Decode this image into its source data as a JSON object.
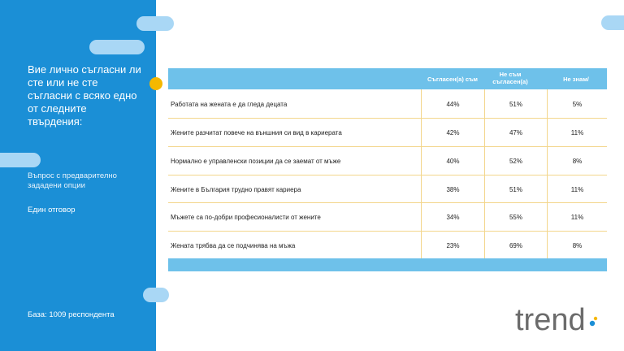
{
  "sidebar": {
    "question": "Вие лично съгласни ли сте или не сте съгласни с всяко едно от следните твърдения:",
    "question_type": "Въпрос с предварително зададени опции",
    "answer_type": "Един отговор",
    "base": "База: 1009 респондента"
  },
  "table": {
    "headers": [
      "",
      "Съгласен(а) съм",
      "Не съм съгласен(а)",
      "Не знам/"
    ],
    "rows": [
      {
        "label": "Работата на жената е да гледа децата",
        "agree": "44%",
        "disagree": "51%",
        "dont_know": "5%"
      },
      {
        "label": "Жените разчитат повече на външния си вид в кариерата",
        "agree": "42%",
        "disagree": "47%",
        "dont_know": "11%"
      },
      {
        "label": "Нормално е управленски позиции да се заемат от мъже",
        "agree": "40%",
        "disagree": "52%",
        "dont_know": "8%"
      },
      {
        "label": "Жените в България трудно правят кариера",
        "agree": "38%",
        "disagree": "51%",
        "dont_know": "11%"
      },
      {
        "label": "Мъжете са по-добри професионалисти от жените",
        "agree": "34%",
        "disagree": "55%",
        "dont_know": "11%"
      },
      {
        "label": "Жената трябва да се подчинява на мъжа",
        "agree": "23%",
        "disagree": "69%",
        "dont_know": "8%"
      }
    ]
  },
  "logo": {
    "text": "trend"
  },
  "colors": {
    "sidebar": "#1b8fd6",
    "accent": "#f5b800",
    "header": "#6ec1ea",
    "grid": "#f3d68c"
  }
}
